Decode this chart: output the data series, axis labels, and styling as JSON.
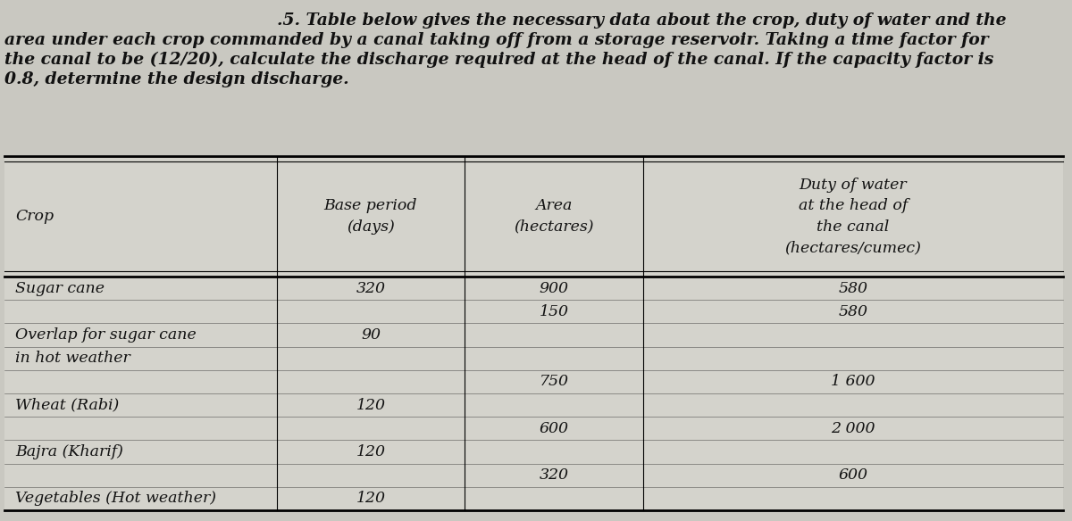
{
  "title_text_line1": ".5. Table below gives the necessary data about the crop, duty of water and the",
  "title_text_line2": "area under each crop commanded by a canal taking off from a storage reservoir. Taking a time factor for",
  "title_text_line3": "the canal to be (12/20), calculate the discharge required at the head of the canal. If the capacity factor is",
  "title_text_line4": "0.8, determine the design discharge.",
  "col_headers": [
    "Crop",
    "Base period\n(days)",
    "Area\n(hectares)",
    "Duty of water\nat the head of\nthe canal\n(hectares/cumec)"
  ],
  "rows": [
    {
      "crop": "Sugar cane",
      "base": "320",
      "area": "900",
      "duty": "580",
      "crop_row": 0,
      "base_row": 0,
      "area_row": 0,
      "duty_row": 0
    },
    {
      "crop": "",
      "base": "",
      "area": "150",
      "duty": "580",
      "crop_row": 1,
      "base_row": 1,
      "area_row": 1,
      "duty_row": 1
    },
    {
      "crop": "Overlap for sugar cane",
      "base": "90",
      "area": "",
      "duty": "",
      "crop_row": 2,
      "base_row": 2,
      "area_row": 2,
      "duty_row": 2
    },
    {
      "crop": "in hot weather",
      "base": "",
      "area": "",
      "duty": "",
      "crop_row": 3,
      "base_row": 3,
      "area_row": 3,
      "duty_row": 3
    },
    {
      "crop": "",
      "base": "",
      "area": "750",
      "duty": "1 600",
      "crop_row": 4,
      "base_row": 4,
      "area_row": 4,
      "duty_row": 4
    },
    {
      "crop": "Wheat (Rabi)",
      "base": "120",
      "area": "",
      "duty": "",
      "crop_row": 5,
      "base_row": 5,
      "area_row": 5,
      "duty_row": 5
    },
    {
      "crop": "",
      "base": "",
      "area": "600",
      "duty": "2 000",
      "crop_row": 6,
      "base_row": 6,
      "area_row": 6,
      "duty_row": 6
    },
    {
      "crop": "Bajra (Kharif)",
      "base": "120",
      "area": "",
      "duty": "",
      "crop_row": 7,
      "base_row": 7,
      "area_row": 7,
      "duty_row": 7
    },
    {
      "crop": "",
      "base": "",
      "area": "320",
      "duty": "600",
      "crop_row": 8,
      "base_row": 8,
      "area_row": 8,
      "duty_row": 8
    },
    {
      "crop": "Vegetables (Hot weather)",
      "base": "120",
      "area": "",
      "duty": "",
      "crop_row": 9,
      "base_row": 9,
      "area_row": 9,
      "duty_row": 9
    }
  ],
  "bg_color": "#c9c8c1",
  "table_bg": "#d4d3cc",
  "text_color": "#111111",
  "title_fontsize": 13.5,
  "cell_fontsize": 12.5,
  "header_fontsize": 12.5
}
